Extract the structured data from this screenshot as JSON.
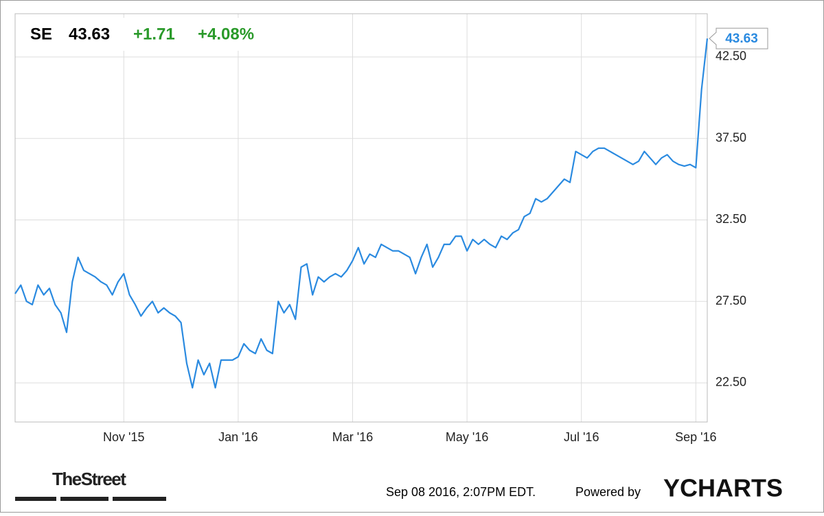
{
  "chart_data": {
    "type": "line",
    "ticker": "SE",
    "last_price": 43.63,
    "change": "+1.71",
    "change_pct": "+4.08%",
    "x": [
      null,
      null,
      null,
      null,
      null,
      null,
      null,
      null,
      null,
      null,
      null,
      null,
      null,
      null,
      null,
      null,
      null,
      null,
      null,
      "Nov '15",
      null,
      null,
      null,
      null,
      null,
      null,
      null,
      null,
      null,
      null,
      null,
      null,
      null,
      null,
      null,
      null,
      null,
      null,
      null,
      "Jan '16",
      null,
      null,
      null,
      null,
      null,
      null,
      null,
      null,
      null,
      null,
      null,
      null,
      null,
      null,
      null,
      null,
      null,
      null,
      null,
      "Mar '16",
      null,
      null,
      null,
      null,
      null,
      null,
      null,
      null,
      null,
      null,
      null,
      null,
      null,
      null,
      null,
      null,
      null,
      null,
      null,
      "May '16",
      null,
      null,
      null,
      null,
      null,
      null,
      null,
      null,
      null,
      null,
      null,
      null,
      null,
      null,
      null,
      null,
      null,
      null,
      null,
      "Jul '16",
      null,
      null,
      null,
      null,
      null,
      null,
      null,
      null,
      null,
      null,
      null,
      null,
      null,
      null,
      null,
      null,
      null,
      null,
      null,
      "Sep '16",
      null,
      null
    ],
    "series": [
      {
        "name": "SE",
        "color": "#2a8ae0",
        "values": [
          27.97,
          28.5,
          27.5,
          27.3,
          28.5,
          27.9,
          28.3,
          27.3,
          26.8,
          25.6,
          28.7,
          30.2,
          29.4,
          29.2,
          29.0,
          28.7,
          28.5,
          27.9,
          28.7,
          29.2,
          27.9,
          27.3,
          26.6,
          27.1,
          27.5,
          26.8,
          27.1,
          26.8,
          26.6,
          26.2,
          23.7,
          22.2,
          23.9,
          23.0,
          23.7,
          22.2,
          23.9,
          23.9,
          23.9,
          24.1,
          24.9,
          24.5,
          24.3,
          25.2,
          24.5,
          24.3,
          27.5,
          26.8,
          27.3,
          26.4,
          29.6,
          29.8,
          27.9,
          29.0,
          28.7,
          29.0,
          29.2,
          29.0,
          29.4,
          30.0,
          30.8,
          29.8,
          30.4,
          30.2,
          31.0,
          30.8,
          30.6,
          30.6,
          30.4,
          30.2,
          29.2,
          30.2,
          31.0,
          29.6,
          30.2,
          31.0,
          31.0,
          31.5,
          31.5,
          30.6,
          31.3,
          31.0,
          31.3,
          31.0,
          30.8,
          31.5,
          31.3,
          31.7,
          31.9,
          32.7,
          32.9,
          33.8,
          33.6,
          33.8,
          34.2,
          34.6,
          35.0,
          34.8,
          36.7,
          36.5,
          36.3,
          36.7,
          36.9,
          36.9,
          36.7,
          36.5,
          36.3,
          36.1,
          35.9,
          36.1,
          36.7,
          36.3,
          35.9,
          36.3,
          36.5,
          36.1,
          35.9,
          35.8,
          35.9,
          35.7,
          40.5,
          43.63
        ]
      }
    ],
    "ylim": [
      20.1,
      45.15
    ],
    "yticks": [
      {
        "value": 22.5,
        "label": "22.50"
      },
      {
        "value": 27.5,
        "label": "27.50"
      },
      {
        "value": 32.5,
        "label": "32.50"
      },
      {
        "value": 37.5,
        "label": "37.50"
      },
      {
        "value": 42.5,
        "label": "42.50"
      }
    ],
    "grid": true,
    "source": "TheStreet",
    "timestamp": "Sep 08 2016, 2:07PM EDT.",
    "powered_by": "Powered by",
    "brand": "YCHARTS"
  }
}
